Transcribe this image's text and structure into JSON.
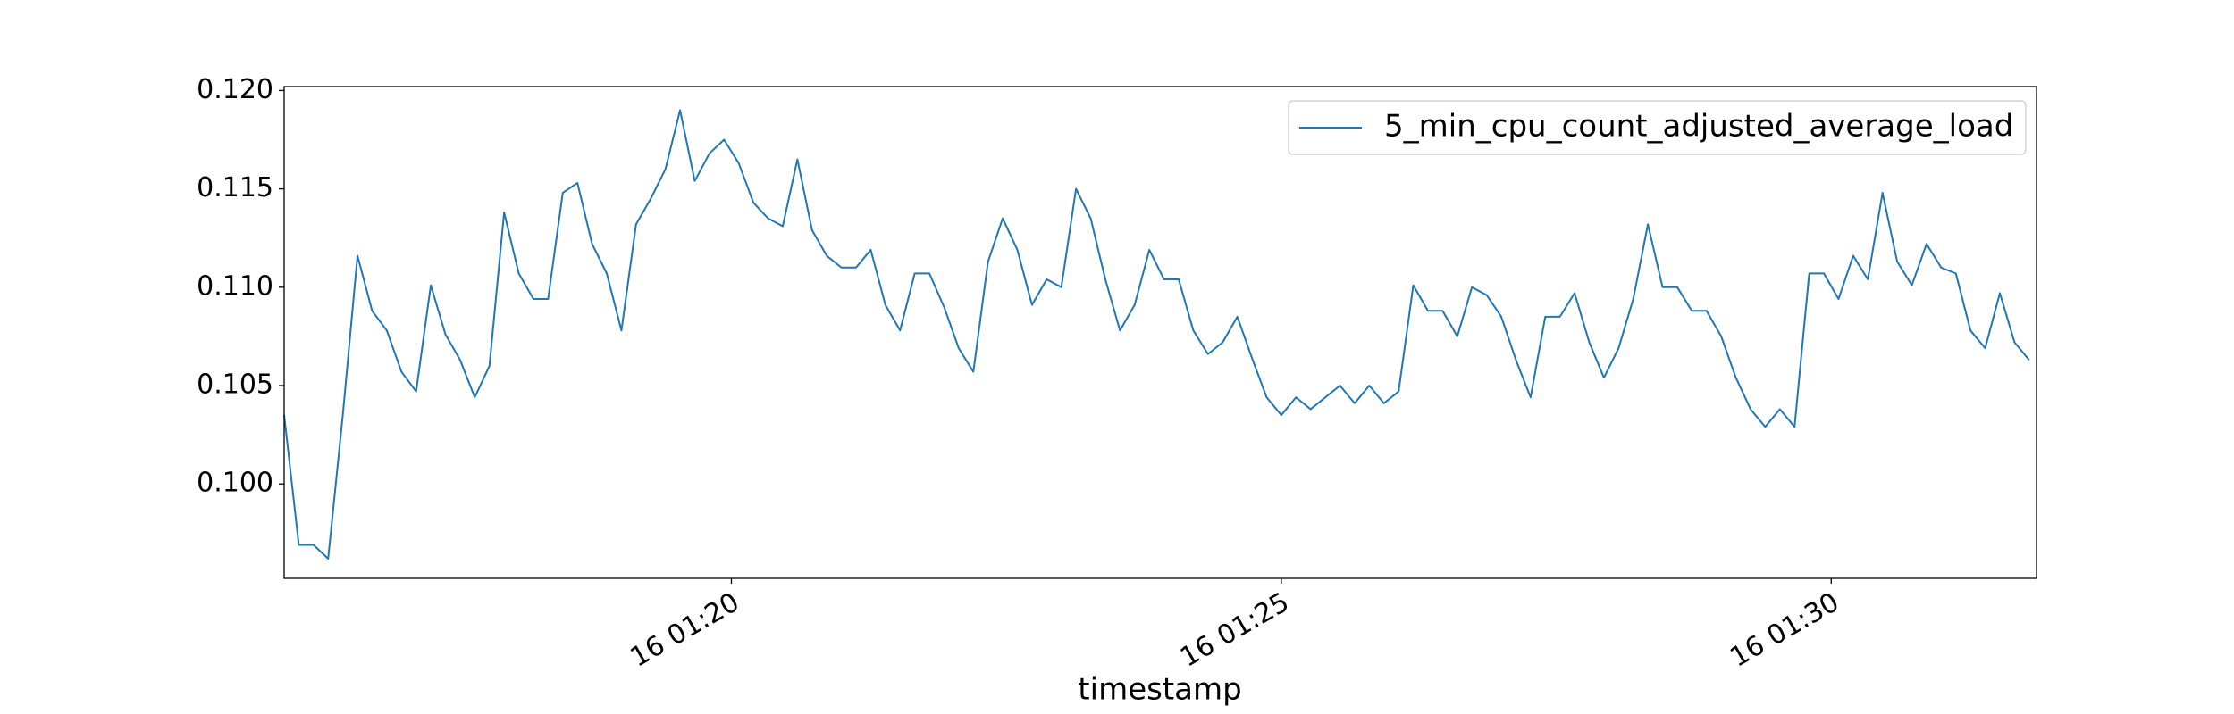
{
  "chart_data": {
    "type": "line",
    "xlabel": "timestamp",
    "x": [
      "01:15:56",
      "01:16:04",
      "01:16:12",
      "01:16:20",
      "01:16:28",
      "01:16:36",
      "01:16:44",
      "01:16:52",
      "01:17:00",
      "01:17:08",
      "01:17:16",
      "01:17:24",
      "01:17:32",
      "01:17:40",
      "01:17:48",
      "01:17:56",
      "01:18:04",
      "01:18:12",
      "01:18:20",
      "01:18:28",
      "01:18:36",
      "01:18:44",
      "01:18:52",
      "01:19:00",
      "01:19:08",
      "01:19:16",
      "01:19:24",
      "01:19:32",
      "01:19:40",
      "01:19:48",
      "01:19:56",
      "01:20:04",
      "01:20:12",
      "01:20:20",
      "01:20:28",
      "01:20:36",
      "01:20:44",
      "01:20:52",
      "01:21:00",
      "01:21:08",
      "01:21:16",
      "01:21:24",
      "01:21:32",
      "01:21:40",
      "01:21:48",
      "01:21:56",
      "01:22:04",
      "01:22:12",
      "01:22:20",
      "01:22:28",
      "01:22:36",
      "01:22:44",
      "01:22:52",
      "01:23:00",
      "01:23:08",
      "01:23:16",
      "01:23:24",
      "01:23:32",
      "01:23:40",
      "01:23:48",
      "01:23:56",
      "01:24:04",
      "01:24:12",
      "01:24:20",
      "01:24:28",
      "01:24:36",
      "01:24:44",
      "01:24:52",
      "01:25:00",
      "01:25:08",
      "01:25:16",
      "01:25:24",
      "01:25:32",
      "01:25:40",
      "01:25:48",
      "01:25:56",
      "01:26:04",
      "01:26:12",
      "01:26:20",
      "01:26:28",
      "01:26:36",
      "01:26:44",
      "01:26:52",
      "01:27:00",
      "01:27:08",
      "01:27:16",
      "01:27:24",
      "01:27:32",
      "01:27:40",
      "01:27:48",
      "01:27:56",
      "01:28:04",
      "01:28:12",
      "01:28:20",
      "01:28:28",
      "01:28:36",
      "01:28:44",
      "01:28:52",
      "01:29:00",
      "01:29:08",
      "01:29:16",
      "01:29:24",
      "01:29:32",
      "01:29:40",
      "01:29:48",
      "01:29:56",
      "01:30:04",
      "01:30:12",
      "01:30:20",
      "01:30:28",
      "01:30:36",
      "01:30:44",
      "01:30:52",
      "01:31:00",
      "01:31:08",
      "01:31:16",
      "01:31:24",
      "01:31:32",
      "01:31:40",
      "01:31:48"
    ],
    "series": [
      {
        "name": "5_min_cpu_count_adjusted_average_load",
        "color": "#1f77b4",
        "values": [
          0.1035,
          0.0969,
          0.0969,
          0.0962,
          0.1035,
          0.1116,
          0.1088,
          0.1078,
          0.1057,
          0.1047,
          0.1101,
          0.1076,
          0.1063,
          0.1044,
          0.106,
          0.1138,
          0.1107,
          0.1094,
          0.1094,
          0.1148,
          0.1153,
          0.1122,
          0.1107,
          0.1078,
          0.1132,
          0.1145,
          0.116,
          0.119,
          0.1154,
          0.1168,
          0.1175,
          0.1163,
          0.1143,
          0.1135,
          0.1131,
          0.1165,
          0.1129,
          0.1116,
          0.111,
          0.111,
          0.1119,
          0.1091,
          0.1078,
          0.1107,
          0.1107,
          0.109,
          0.1069,
          0.1057,
          0.1113,
          0.1135,
          0.1119,
          0.1091,
          0.1104,
          0.11,
          0.115,
          0.1135,
          0.1104,
          0.1078,
          0.1091,
          0.1119,
          0.1104,
          0.1104,
          0.1078,
          0.1066,
          0.1072,
          0.1085,
          0.1064,
          0.1044,
          0.1035,
          0.1044,
          0.1038,
          0.1044,
          0.105,
          0.1041,
          0.105,
          0.1041,
          0.1047,
          0.1101,
          0.1088,
          0.1088,
          0.1075,
          0.11,
          0.1096,
          0.1085,
          0.1063,
          0.1044,
          0.1085,
          0.1085,
          0.1097,
          0.1072,
          0.1054,
          0.1069,
          0.1094,
          0.1132,
          0.11,
          0.11,
          0.1088,
          0.1088,
          0.1075,
          0.1054,
          0.1038,
          0.1029,
          0.1038,
          0.1029,
          0.1107,
          0.1107,
          0.1094,
          0.1116,
          0.1104,
          0.1148,
          0.1113,
          0.1101,
          0.1122,
          0.111,
          0.1107,
          0.1078,
          0.1069,
          0.1097,
          0.1072,
          0.1063
        ]
      }
    ],
    "xlim": [
      "01:15:56",
      "01:31:52"
    ],
    "xticks": [
      {
        "value": "01:20:00",
        "label": "16 01:20"
      },
      {
        "value": "01:25:00",
        "label": "16 01:25"
      },
      {
        "value": "01:30:00",
        "label": "16 01:30"
      }
    ],
    "ylim": [
      0.0952,
      0.1202
    ],
    "yticks": [
      {
        "value": 0.1,
        "label": "0.100"
      },
      {
        "value": 0.105,
        "label": "0.105"
      },
      {
        "value": 0.11,
        "label": "0.110"
      },
      {
        "value": 0.115,
        "label": "0.115"
      },
      {
        "value": 0.12,
        "label": "0.120"
      }
    ],
    "legend": "upper right"
  }
}
